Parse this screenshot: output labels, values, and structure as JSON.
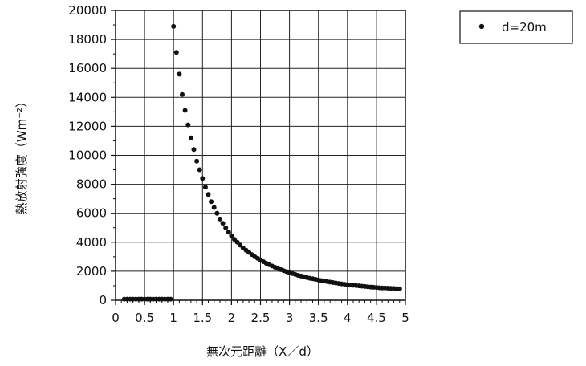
{
  "chart_data": {
    "type": "scatter",
    "xlabel": "無次元距離（X／d）",
    "ylabel": "熱放射強度（Wm⁻²）",
    "xlim": [
      0,
      5
    ],
    "ylim": [
      0,
      20000
    ],
    "xticks": [
      0,
      0.5,
      1,
      1.5,
      2,
      2.5,
      3,
      3.5,
      4,
      4.5,
      5
    ],
    "xtick_labels": [
      "0",
      "0.5",
      "1",
      "1.5",
      "2",
      "2.5",
      "3",
      "3.5",
      "4",
      "4.5",
      "5"
    ],
    "yticks": [
      0,
      2000,
      4000,
      6000,
      8000,
      10000,
      12000,
      14000,
      16000,
      18000,
      20000
    ],
    "ytick_labels": [
      "0",
      "2000",
      "4000",
      "6000",
      "8000",
      "10000",
      "12000",
      "14000",
      "16000",
      "18000",
      "20000"
    ],
    "grid": true,
    "legend_position": "top-right-outside",
    "series": [
      {
        "name": "d=20m",
        "color": "#111111",
        "x": [
          0.15,
          0.2,
          0.25,
          0.3,
          0.35,
          0.4,
          0.45,
          0.5,
          0.55,
          0.6,
          0.65,
          0.7,
          0.75,
          0.8,
          0.85,
          0.9,
          0.95,
          1.0,
          1.05,
          1.1,
          1.15,
          1.2,
          1.25,
          1.3,
          1.35,
          1.4,
          1.45,
          1.5,
          1.55,
          1.6,
          1.65,
          1.7,
          1.75,
          1.8,
          1.85,
          1.9,
          1.95,
          2.0,
          2.05,
          2.1,
          2.15,
          2.2,
          2.25,
          2.3,
          2.35,
          2.4,
          2.45,
          2.5,
          2.55,
          2.6,
          2.65,
          2.7,
          2.75,
          2.8,
          2.85,
          2.9,
          2.95,
          3.0,
          3.05,
          3.1,
          3.15,
          3.2,
          3.25,
          3.3,
          3.35,
          3.4,
          3.45,
          3.5,
          3.55,
          3.6,
          3.65,
          3.7,
          3.75,
          3.8,
          3.85,
          3.9,
          3.95,
          4.0,
          4.05,
          4.1,
          4.15,
          4.2,
          4.25,
          4.3,
          4.35,
          4.4,
          4.45,
          4.5,
          4.55,
          4.6,
          4.65,
          4.7,
          4.75,
          4.8,
          4.85,
          4.9
        ],
        "y": [
          80,
          80,
          80,
          80,
          80,
          80,
          80,
          80,
          80,
          80,
          80,
          80,
          80,
          80,
          80,
          80,
          80,
          18900,
          17100,
          15600,
          14200,
          13100,
          12100,
          11200,
          10400,
          9600,
          9000,
          8400,
          7800,
          7300,
          6800,
          6400,
          6000,
          5600,
          5300,
          5000,
          4700,
          4450,
          4200,
          4000,
          3800,
          3600,
          3450,
          3300,
          3150,
          3000,
          2900,
          2780,
          2660,
          2550,
          2450,
          2360,
          2270,
          2190,
          2110,
          2040,
          1970,
          1900,
          1840,
          1780,
          1720,
          1670,
          1620,
          1570,
          1520,
          1480,
          1440,
          1400,
          1360,
          1320,
          1290,
          1250,
          1220,
          1190,
          1160,
          1130,
          1100,
          1080,
          1050,
          1030,
          1010,
          990,
          970,
          950,
          930,
          910,
          890,
          880,
          860,
          850,
          840,
          830,
          820,
          810,
          800,
          790
        ]
      }
    ]
  }
}
